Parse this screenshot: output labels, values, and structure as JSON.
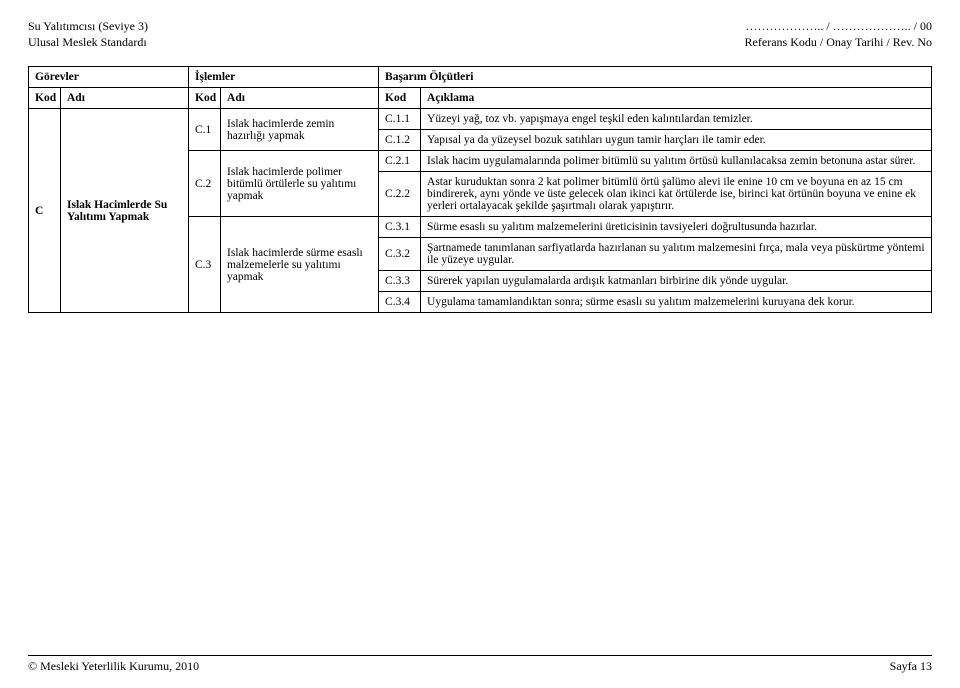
{
  "header": {
    "left_line1": "Su Yalıtımcısı (Seviye 3)",
    "left_line2": "Ulusal Meslek Standardı",
    "right_line1": "……………….. / ……………….. / 00",
    "right_line2": "Referans Kodu / Onay Tarihi / Rev. No"
  },
  "tableHead": {
    "gorevler": "Görevler",
    "islemler": "İşlemler",
    "basarim": "Başarım Ölçütleri",
    "kod": "Kod",
    "adi": "Adı",
    "aciklama": "Açıklama"
  },
  "task": {
    "kod": "C",
    "adi": "Islak Hacimlerde Su Yalıtımı Yapmak"
  },
  "ops": {
    "c1": {
      "kod": "C.1",
      "adi": "Islak hacimlerde zemin hazırlığı yapmak"
    },
    "c2": {
      "kod": "C.2",
      "adi": "Islak hacimlerde polimer bitümlü örtülerle su yalıtımı yapmak"
    },
    "c3": {
      "kod": "C.3",
      "adi": "Islak hacimlerde sürme esaslı malzemelerle su yalıtımı yapmak"
    }
  },
  "crit": {
    "c11": {
      "kod": "C.1.1",
      "text": "Yüzeyi yağ, toz vb. yapışmaya engel teşkil eden kalıntılardan temizler."
    },
    "c12": {
      "kod": "C.1.2",
      "text": "Yapısal ya da yüzeysel bozuk satıhları uygun tamir harçları ile tamir eder."
    },
    "c21": {
      "kod": "C.2.1",
      "text": "Islak hacim uygulamalarında polimer bitümlü su yalıtım örtüsü kullanılacaksa zemin betonuna astar sürer."
    },
    "c22": {
      "kod": "C.2.2",
      "text": "Astar kuruduktan sonra 2 kat polimer bitümlü örtü şalümo alevi ile enine 10 cm ve boyuna en az 15 cm bindirerek, aynı yönde ve üste gelecek olan ikinci kat örtülerde ise, birinci kat örtünün boyuna ve enine ek yerleri ortalayacak şekilde şaşırtmalı olarak yapıştırır."
    },
    "c31": {
      "kod": "C.3.1",
      "text": "Sürme esaslı su yalıtım malzemelerini üreticisinin tavsiyeleri doğrultusunda hazırlar."
    },
    "c32": {
      "kod": "C.3.2",
      "text": "Şartnamede tanımlanan sarfiyatlarda hazırlanan su yalıtım malzemesini fırça, mala veya püskürtme yöntemi ile yüzeye uygular."
    },
    "c33": {
      "kod": "C.3.3",
      "text": "Sürerek yapılan uygulamalarda ardışık katmanları birbirine dik yönde uygular."
    },
    "c34": {
      "kod": "C.3.4",
      "text": "Uygulama tamamlandıktan sonra; sürme esaslı su yalıtım malzemelerini kuruyana dek korur."
    }
  },
  "footer": {
    "left": "© Mesleki Yeterlilik Kurumu, 2010",
    "right": "Sayfa 13"
  }
}
